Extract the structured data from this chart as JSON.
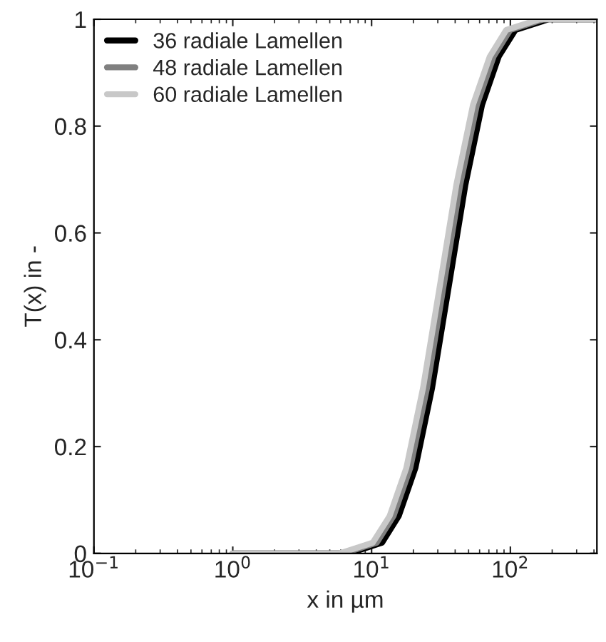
{
  "chart_data": {
    "type": "line",
    "xlabel": "x in µm",
    "ylabel": "T(x) in -",
    "log": "x",
    "xlim": [
      0.1,
      420
    ],
    "ylim": [
      0,
      1
    ],
    "xticks": [
      {
        "value": 0.1,
        "label": "10$^{−1}$"
      },
      {
        "value": 1,
        "label": "10$^{0}$"
      },
      {
        "value": 10,
        "label": "10$^{1}$"
      },
      {
        "value": 100,
        "label": "10$^{2}$"
      }
    ],
    "yticks": [
      0,
      0.2,
      0.4,
      0.6,
      0.8,
      1
    ],
    "grid": false,
    "legend": "top left",
    "marker": "none",
    "line_style": "solid",
    "series": [
      {
        "name": "36 radiale Lamellen",
        "color": "#000000",
        "x": [
          1,
          3,
          6.9,
          11.9,
          15.7,
          20.7,
          27.3,
          36,
          47.4,
          62.5,
          82.4,
          108.6,
          189,
          420
        ],
        "values": [
          0,
          0,
          0,
          0.02,
          0.07,
          0.16,
          0.31,
          0.5,
          0.69,
          0.84,
          0.93,
          0.98,
          1,
          1
        ]
      },
      {
        "name": "48 radiale Lamellen",
        "color": "#808080",
        "x": [
          1,
          3,
          6.3,
          10.9,
          14.4,
          19.0,
          25.1,
          33,
          43.5,
          57.4,
          75.7,
          99.7,
          173,
          420
        ],
        "values": [
          0,
          0,
          0,
          0.02,
          0.07,
          0.16,
          0.31,
          0.5,
          0.69,
          0.84,
          0.93,
          0.98,
          1,
          1
        ]
      },
      {
        "name": "60 radiale Lamellen",
        "color": "#c8c8c8",
        "x": [
          1,
          3,
          5.9,
          10.2,
          13.5,
          17.8,
          23.5,
          31,
          40.8,
          53.8,
          71,
          93.4,
          162,
          420
        ],
        "values": [
          0,
          0,
          0,
          0.02,
          0.07,
          0.16,
          0.31,
          0.5,
          0.69,
          0.84,
          0.93,
          0.98,
          1,
          1
        ]
      }
    ]
  }
}
